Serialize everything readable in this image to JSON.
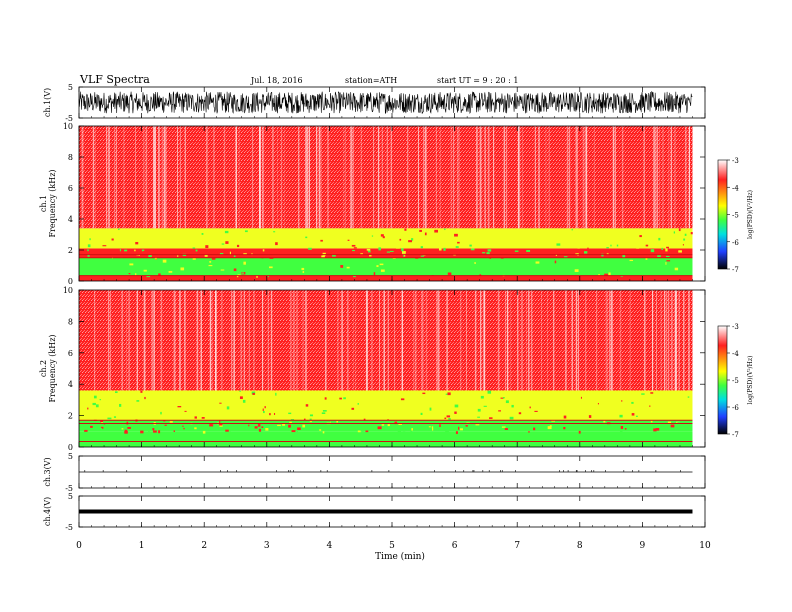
{
  "header": {
    "title": "VLF  Spectra",
    "date": "Jul. 18, 2016",
    "station": "station=ATH",
    "start": "start  UT =  9 : 20 : 1"
  },
  "colors": {
    "red": "#ff2020",
    "yellow": "#f0ff20",
    "green": "#40ff40",
    "background": "#ffffff"
  },
  "chart_data": [
    {
      "type": "line",
      "name": "ch1-waveform",
      "ylabel": "ch.1(V)",
      "ylim": [
        -5,
        5
      ],
      "yticks": [
        "5",
        "-5"
      ],
      "amplitude_range": [
        -3.5,
        3.5
      ]
    },
    {
      "type": "heatmap",
      "name": "ch1-spectrogram",
      "ylabel": "ch.1\nFrequency (kHz)",
      "ylim": [
        0,
        10
      ],
      "yticks": [
        "0",
        "2",
        "4",
        "6",
        "8",
        "10"
      ],
      "colorbar": {
        "label": "log(PSD)(V²/Hz)",
        "ticks": [
          "-3",
          "-4",
          "-5",
          "-6",
          "-7"
        ],
        "range": [
          -7,
          -3
        ]
      },
      "bands_khz": [
        {
          "from": 0.0,
          "to": 0.35,
          "level": "red"
        },
        {
          "from": 0.35,
          "to": 1.5,
          "level": "green"
        },
        {
          "from": 1.5,
          "to": 2.1,
          "level": "red"
        },
        {
          "from": 2.1,
          "to": 3.4,
          "level": "yellow"
        },
        {
          "from": 3.4,
          "to": 10.0,
          "level": "red"
        }
      ]
    },
    {
      "type": "heatmap",
      "name": "ch2-spectrogram",
      "ylabel": "ch.2\nFrequency (kHz)",
      "ylim": [
        0,
        10
      ],
      "yticks": [
        "0",
        "2",
        "4",
        "6",
        "8",
        "10"
      ],
      "colorbar": {
        "label": "log(PSD)(V²/Hz)",
        "ticks": [
          "-3",
          "-4",
          "-5",
          "-6",
          "-7"
        ],
        "range": [
          -7,
          -3
        ]
      },
      "bands_khz": [
        {
          "from": 0.0,
          "to": 1.0,
          "level": "green"
        },
        {
          "from": 1.0,
          "to": 1.7,
          "level": "green"
        },
        {
          "from": 1.7,
          "to": 3.6,
          "level": "yellow"
        },
        {
          "from": 3.6,
          "to": 10.0,
          "level": "red"
        }
      ]
    },
    {
      "type": "line",
      "name": "ch3-waveform",
      "ylabel": "ch.3(V)",
      "ylim": [
        -5,
        5
      ],
      "yticks": [
        "5",
        "-5"
      ],
      "level": 0
    },
    {
      "type": "line",
      "name": "ch4-waveform",
      "ylabel": "ch.4(V)",
      "ylim": [
        -5,
        5
      ],
      "yticks": [
        "5",
        "-5"
      ],
      "level": 0
    }
  ],
  "xaxis": {
    "label": "Time (min)",
    "ticks": [
      "0",
      "1",
      "2",
      "3",
      "4",
      "5",
      "6",
      "7",
      "8",
      "9",
      "10"
    ],
    "xlim": [
      0,
      10
    ],
    "data_end": 9.8
  }
}
